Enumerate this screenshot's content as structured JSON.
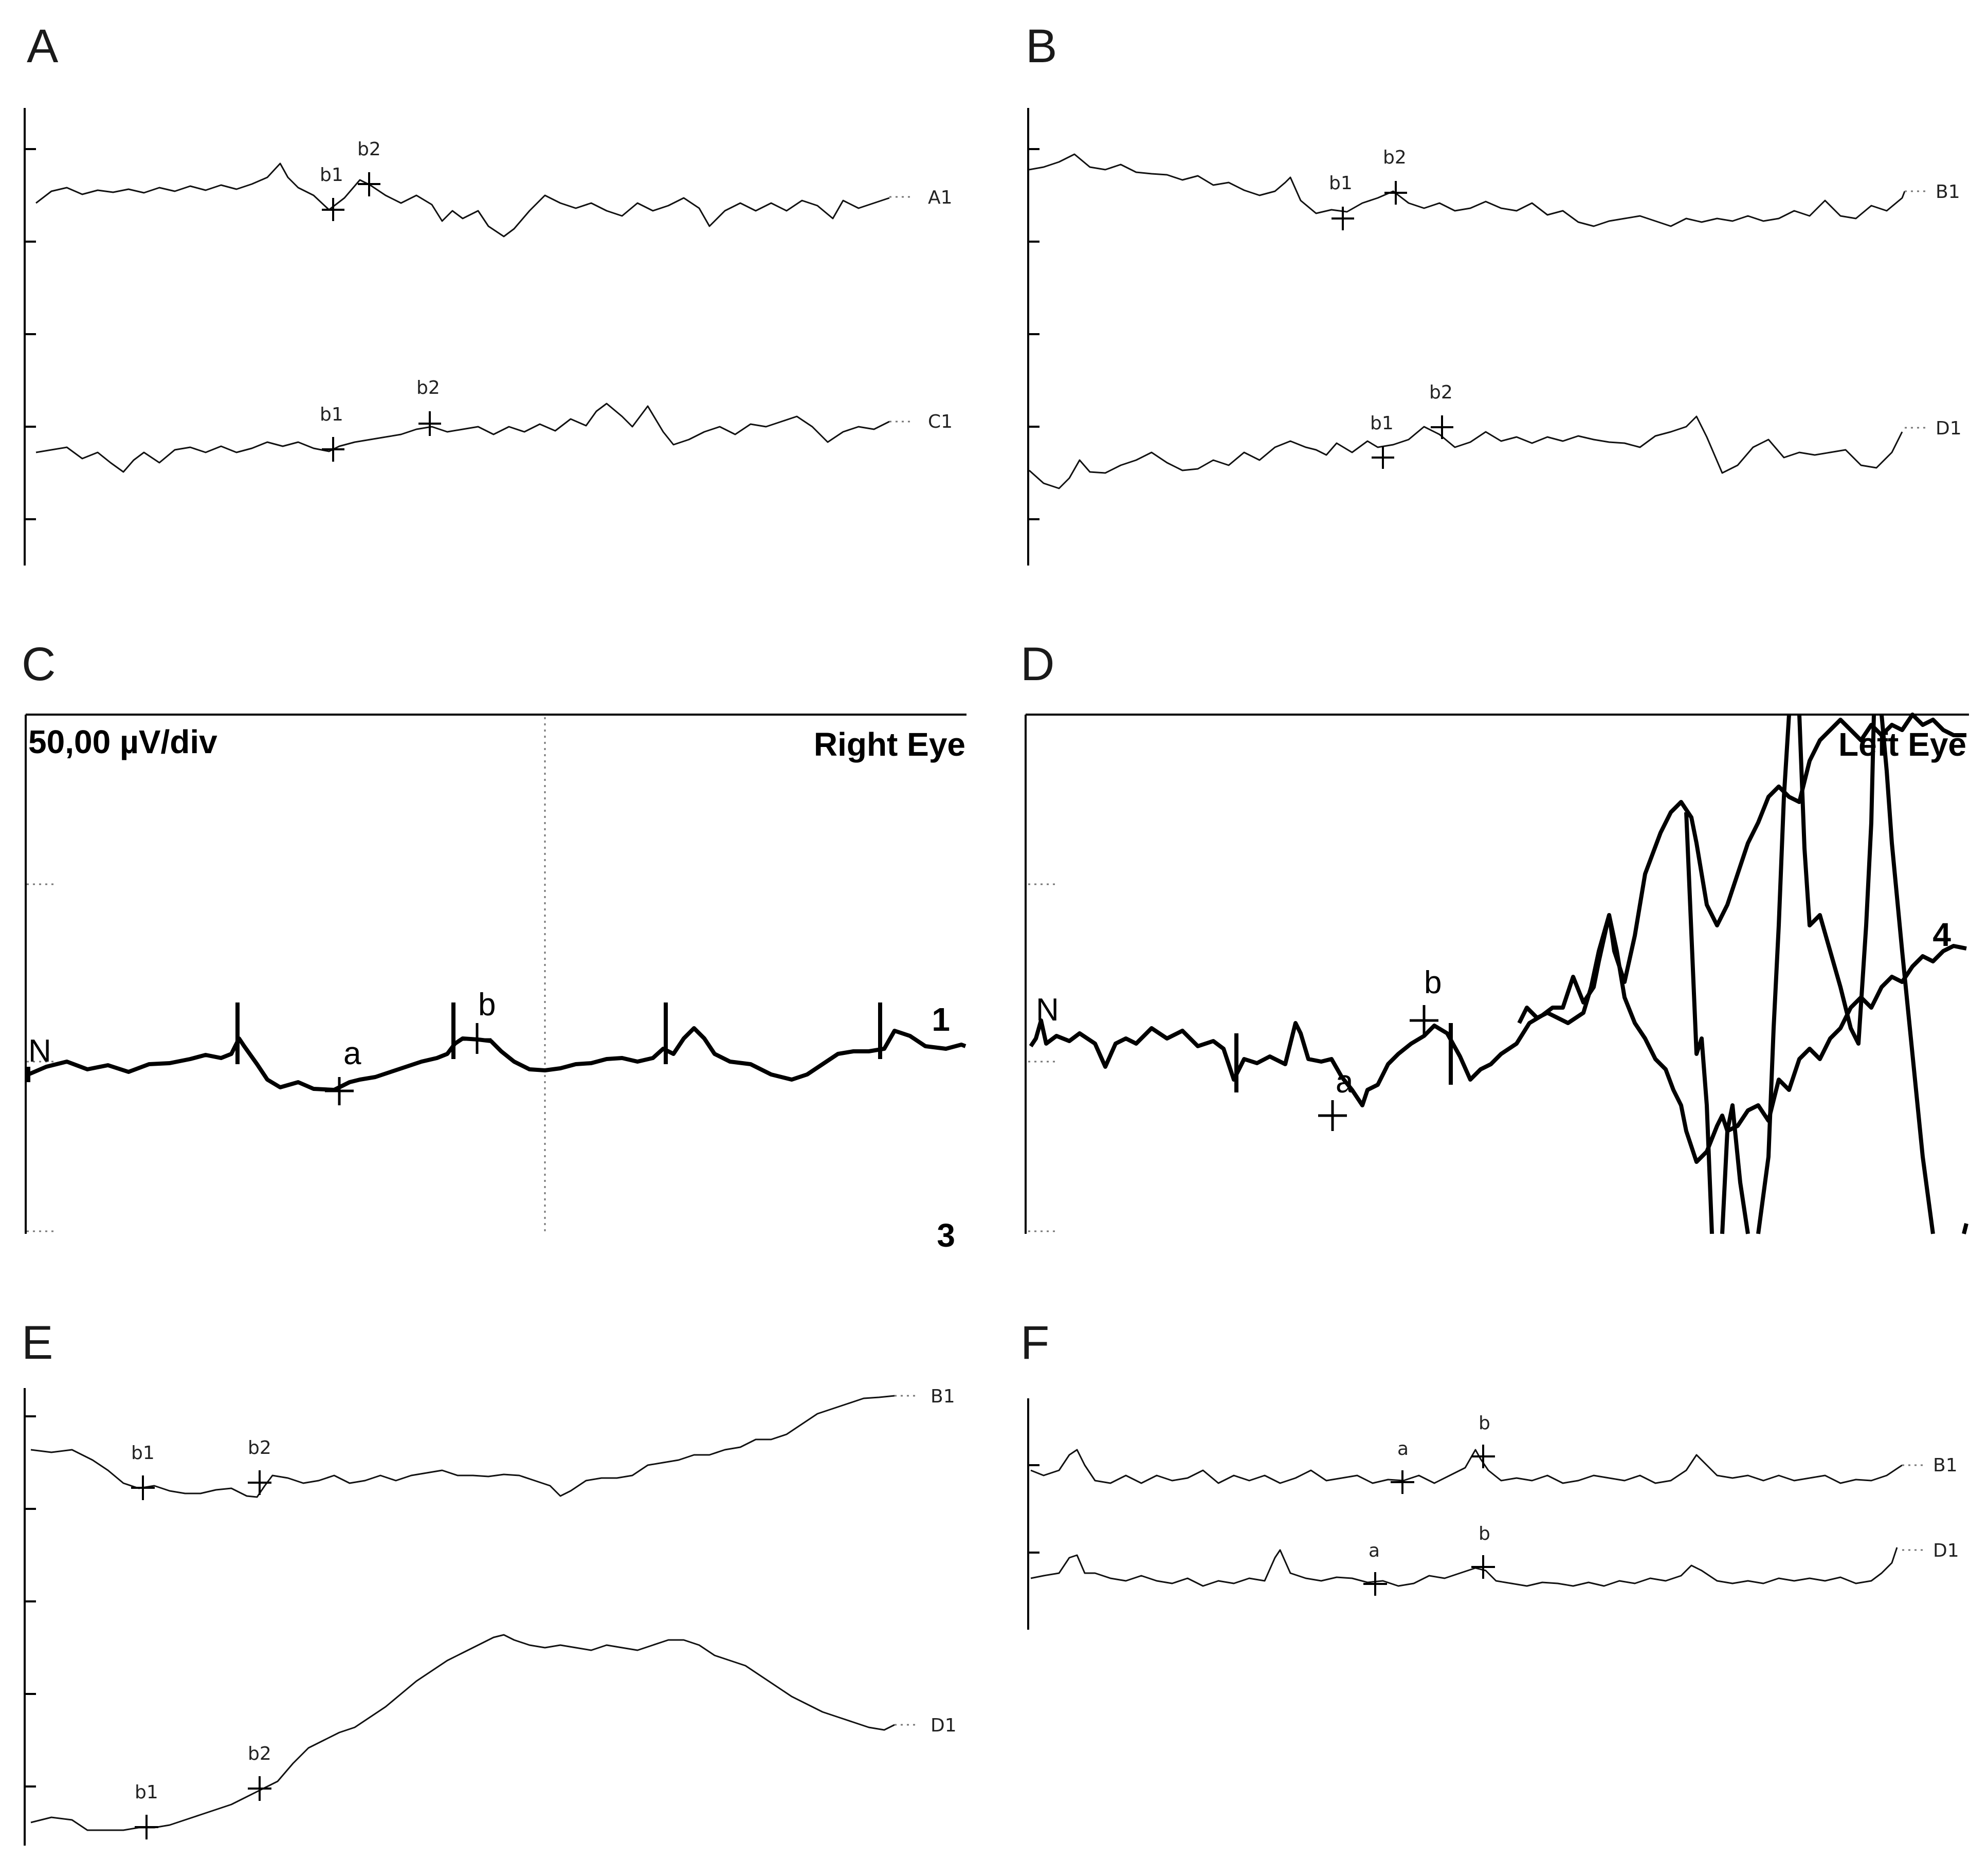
{
  "panels": {
    "A": {
      "letter": "A",
      "channels": [
        "A1",
        "C1"
      ],
      "markers": [
        "b1",
        "b2"
      ]
    },
    "B": {
      "letter": "B",
      "channels": [
        "B1",
        "D1"
      ],
      "markers": [
        "b1",
        "b2"
      ]
    },
    "C": {
      "letter": "C",
      "scale": "50,00 µV/div",
      "eye": "Right Eye",
      "n": "N",
      "a": "a",
      "b": "b",
      "top_num": "1",
      "bottom_num": "3"
    },
    "D": {
      "letter": "D",
      "eye": "Left Eye",
      "n": "N",
      "a": "a",
      "b": "b",
      "num": "4"
    },
    "E": {
      "letter": "E",
      "channels": [
        "B1",
        "D1"
      ],
      "markers": [
        "b1",
        "b2"
      ]
    },
    "F": {
      "letter": "F",
      "channels": [
        "B1",
        "D1"
      ],
      "markers": [
        "a",
        "b"
      ]
    }
  },
  "chart_data": [
    {
      "type": "line",
      "panel": "A",
      "series": [
        {
          "name": "A1"
        },
        {
          "name": "C1"
        }
      ]
    },
    {
      "type": "line",
      "panel": "B",
      "series": [
        {
          "name": "B1"
        },
        {
          "name": "D1"
        }
      ]
    },
    {
      "type": "line",
      "panel": "C",
      "annotations": [
        "50,00 µV/div",
        "Right Eye",
        "N",
        "a",
        "b",
        "1",
        "3"
      ]
    },
    {
      "type": "line",
      "panel": "D",
      "annotations": [
        "Left Eye",
        "N",
        "a",
        "b",
        "4"
      ]
    },
    {
      "type": "line",
      "panel": "E",
      "series": [
        {
          "name": "B1"
        },
        {
          "name": "D1"
        }
      ]
    },
    {
      "type": "line",
      "panel": "F",
      "series": [
        {
          "name": "B1"
        },
        {
          "name": "D1"
        }
      ]
    }
  ]
}
